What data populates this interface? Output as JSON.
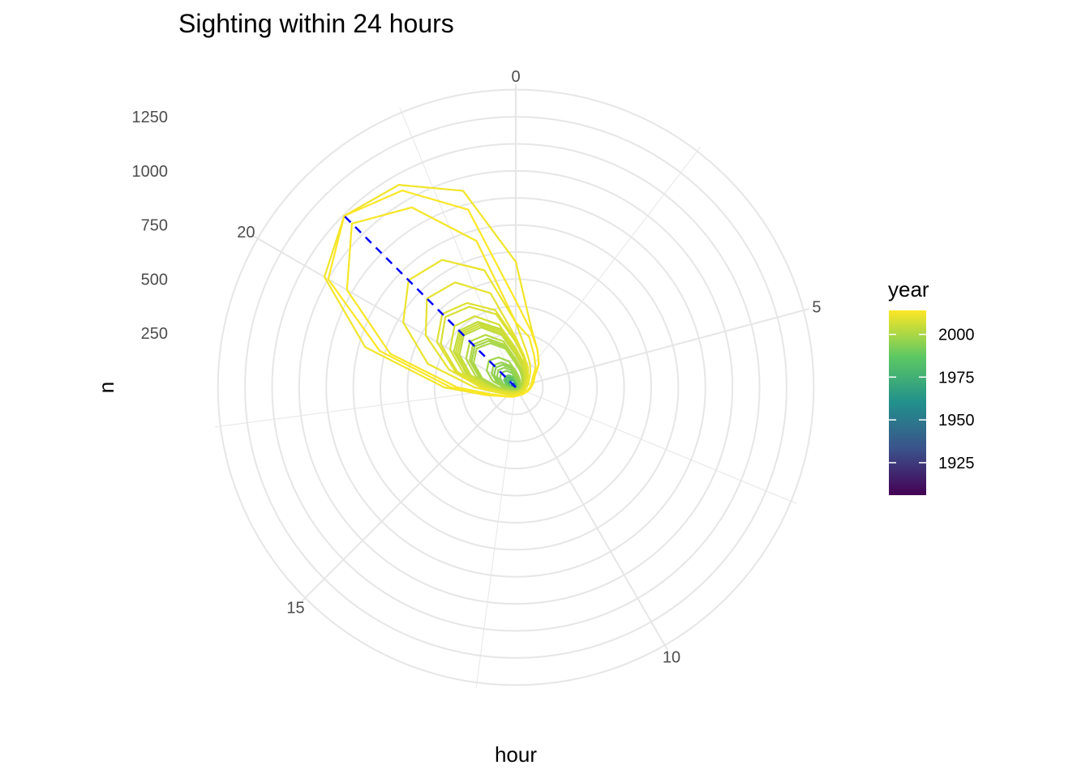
{
  "chart_data": {
    "type": "line",
    "coord": "polar",
    "title": "Sighting within 24 hours",
    "xlabel": "hour",
    "ylabel": "n",
    "x_ticks": [
      0,
      5,
      10,
      15,
      20
    ],
    "x_range": [
      0,
      24
    ],
    "y_ticks": [
      250,
      500,
      750,
      1000,
      1250
    ],
    "y_range": [
      0,
      1400
    ],
    "grid": true,
    "legend": {
      "title": "year",
      "position": "right",
      "ticks": [
        1925,
        1950,
        1975,
        2000
      ],
      "range": [
        1906,
        2014
      ],
      "palette": [
        "#440154",
        "#3b528b",
        "#21908c",
        "#5dc863",
        "#fde725"
      ]
    },
    "peak_line": {
      "style": "dashed",
      "color": "#0000ff",
      "hour": 21,
      "from": 0,
      "to": 1120
    },
    "series": [
      {
        "year": 2014,
        "values": [
          400,
          270,
          200,
          150,
          100,
          85,
          70,
          60,
          50,
          45,
          40,
          40,
          40,
          45,
          50,
          60,
          80,
          130,
          300,
          650,
          1000,
          1120,
          1050,
          850
        ]
      },
      {
        "year": 2013,
        "values": [
          300,
          240,
          170,
          130,
          90,
          75,
          65,
          55,
          48,
          42,
          38,
          38,
          38,
          42,
          48,
          58,
          75,
          120,
          270,
          600,
          900,
          1070,
          960,
          700
        ]
      },
      {
        "year": 2012,
        "values": [
          580,
          280,
          200,
          150,
          100,
          85,
          70,
          60,
          50,
          45,
          40,
          40,
          40,
          45,
          50,
          60,
          80,
          140,
          330,
          720,
          1020,
          1120,
          1080,
          940
        ]
      },
      {
        "year": 2011,
        "values": [
          300,
          180,
          130,
          95,
          70,
          60,
          50,
          45,
          40,
          35,
          32,
          32,
          32,
          35,
          40,
          48,
          60,
          90,
          190,
          420,
          600,
          700,
          680,
          560
        ]
      },
      {
        "year": 2010,
        "values": [
          230,
          150,
          110,
          80,
          60,
          52,
          44,
          38,
          34,
          30,
          28,
          28,
          28,
          30,
          34,
          40,
          52,
          80,
          160,
          320,
          480,
          580,
          560,
          450
        ]
      },
      {
        "year": 2009,
        "values": [
          220,
          150,
          105,
          78,
          58,
          50,
          42,
          36,
          32,
          29,
          27,
          27,
          27,
          29,
          32,
          38,
          50,
          75,
          150,
          290,
          420,
          480,
          450,
          370
        ]
      },
      {
        "year": 2008,
        "values": [
          210,
          140,
          100,
          75,
          56,
          48,
          40,
          35,
          31,
          28,
          26,
          26,
          26,
          28,
          31,
          37,
          48,
          72,
          145,
          280,
          400,
          460,
          430,
          350
        ]
      },
      {
        "year": 2007,
        "values": [
          180,
          125,
          90,
          68,
          50,
          43,
          36,
          32,
          28,
          25,
          23,
          23,
          23,
          25,
          28,
          33,
          43,
          65,
          130,
          250,
          350,
          400,
          380,
          300
        ]
      },
      {
        "year": 2006,
        "values": [
          160,
          110,
          80,
          60,
          45,
          38,
          32,
          28,
          25,
          22,
          20,
          20,
          20,
          22,
          25,
          30,
          38,
          58,
          115,
          220,
          310,
          350,
          330,
          260
        ]
      },
      {
        "year": 2005,
        "values": [
          160,
          110,
          80,
          60,
          45,
          38,
          32,
          28,
          25,
          22,
          20,
          20,
          20,
          22,
          25,
          30,
          38,
          58,
          115,
          225,
          320,
          360,
          340,
          270
        ]
      },
      {
        "year": 2004,
        "values": [
          170,
          115,
          85,
          63,
          47,
          40,
          34,
          30,
          26,
          23,
          21,
          21,
          21,
          23,
          26,
          31,
          40,
          60,
          120,
          235,
          330,
          370,
          350,
          280
        ]
      },
      {
        "year": 2003,
        "values": [
          150,
          105,
          76,
          57,
          42,
          36,
          31,
          27,
          24,
          21,
          19,
          19,
          19,
          21,
          24,
          28,
          36,
          55,
          110,
          215,
          300,
          340,
          320,
          250
        ]
      },
      {
        "year": 2002,
        "values": [
          130,
          92,
          66,
          50,
          37,
          32,
          27,
          24,
          21,
          19,
          17,
          17,
          17,
          19,
          21,
          25,
          32,
          48,
          95,
          190,
          265,
          300,
          280,
          220
        ]
      },
      {
        "year": 2001,
        "values": [
          120,
          85,
          60,
          45,
          34,
          29,
          25,
          22,
          19,
          17,
          16,
          16,
          16,
          17,
          19,
          23,
          29,
          44,
          88,
          175,
          245,
          280,
          260,
          205
        ]
      },
      {
        "year": 2000,
        "values": [
          110,
          78,
          56,
          42,
          31,
          27,
          23,
          20,
          18,
          16,
          15,
          15,
          15,
          16,
          18,
          21,
          27,
          40,
          80,
          160,
          225,
          255,
          235,
          185
        ]
      },
      {
        "year": 1999,
        "values": [
          115,
          80,
          58,
          44,
          33,
          28,
          24,
          21,
          18,
          16,
          15,
          15,
          15,
          16,
          18,
          22,
          28,
          42,
          84,
          168,
          236,
          268,
          248,
          195
        ]
      },
      {
        "year": 1998,
        "values": [
          75,
          52,
          38,
          28,
          21,
          18,
          15,
          13,
          12,
          11,
          10,
          10,
          10,
          11,
          12,
          14,
          18,
          28,
          55,
          110,
          155,
          175,
          160,
          125
        ]
      },
      {
        "year": 1997,
        "values": [
          62,
          43,
          31,
          23,
          17,
          15,
          13,
          11,
          10,
          9,
          8,
          8,
          8,
          9,
          10,
          12,
          15,
          23,
          46,
          92,
          128,
          145,
          133,
          104
        ]
      },
      {
        "year": 1996,
        "values": [
          48,
          34,
          24,
          18,
          13,
          11,
          10,
          9,
          8,
          7,
          6,
          6,
          6,
          7,
          8,
          9,
          12,
          18,
          36,
          72,
          100,
          114,
          105,
          82
        ]
      },
      {
        "year": 1995,
        "values": [
          55,
          38,
          28,
          21,
          15,
          13,
          11,
          10,
          9,
          8,
          7,
          7,
          7,
          8,
          9,
          10,
          13,
          20,
          41,
          82,
          115,
          130,
          120,
          94
        ]
      },
      {
        "year": 1994,
        "values": [
          40,
          28,
          20,
          15,
          11,
          10,
          8,
          7,
          6,
          6,
          5,
          5,
          5,
          6,
          6,
          7,
          10,
          15,
          30,
          60,
          84,
          95,
          88,
          69
        ]
      },
      {
        "year": 1990,
        "values": [
          28,
          20,
          14,
          11,
          8,
          7,
          6,
          5,
          5,
          4,
          4,
          4,
          4,
          4,
          5,
          5,
          7,
          11,
          21,
          42,
          59,
          67,
          62,
          48
        ]
      },
      {
        "year": 1985,
        "values": [
          22,
          15,
          11,
          8,
          6,
          5,
          4,
          4,
          3,
          3,
          3,
          3,
          3,
          3,
          3,
          4,
          5,
          8,
          16,
          32,
          45,
          51,
          47,
          37
        ]
      },
      {
        "year": 1978,
        "values": [
          30,
          21,
          15,
          11,
          8,
          7,
          6,
          5,
          5,
          4,
          4,
          4,
          4,
          4,
          5,
          6,
          7,
          11,
          22,
          44,
          62,
          70,
          65,
          50
        ]
      },
      {
        "year": 1975,
        "values": [
          26,
          18,
          13,
          10,
          7,
          6,
          5,
          5,
          4,
          4,
          3,
          3,
          3,
          4,
          4,
          5,
          6,
          10,
          19,
          38,
          54,
          61,
          56,
          44
        ]
      },
      {
        "year": 1968,
        "values": [
          18,
          13,
          9,
          7,
          5,
          4,
          4,
          3,
          3,
          3,
          2,
          2,
          2,
          3,
          3,
          3,
          4,
          7,
          13,
          26,
          37,
          42,
          39,
          30
        ]
      },
      {
        "year": 1960,
        "values": [
          10,
          7,
          5,
          4,
          3,
          2,
          2,
          2,
          2,
          1,
          1,
          1,
          1,
          1,
          2,
          2,
          2,
          4,
          7,
          15,
          21,
          24,
          22,
          17
        ]
      },
      {
        "year": 1950,
        "values": [
          6,
          4,
          3,
          2,
          2,
          1,
          1,
          1,
          1,
          1,
          1,
          1,
          1,
          1,
          1,
          1,
          1,
          2,
          4,
          9,
          12,
          14,
          13,
          10
        ]
      },
      {
        "year": 1930,
        "values": [
          3,
          2,
          2,
          1,
          1,
          1,
          1,
          1,
          0,
          0,
          0,
          0,
          0,
          0,
          0,
          1,
          1,
          1,
          2,
          4,
          6,
          7,
          6,
          5
        ]
      }
    ]
  }
}
